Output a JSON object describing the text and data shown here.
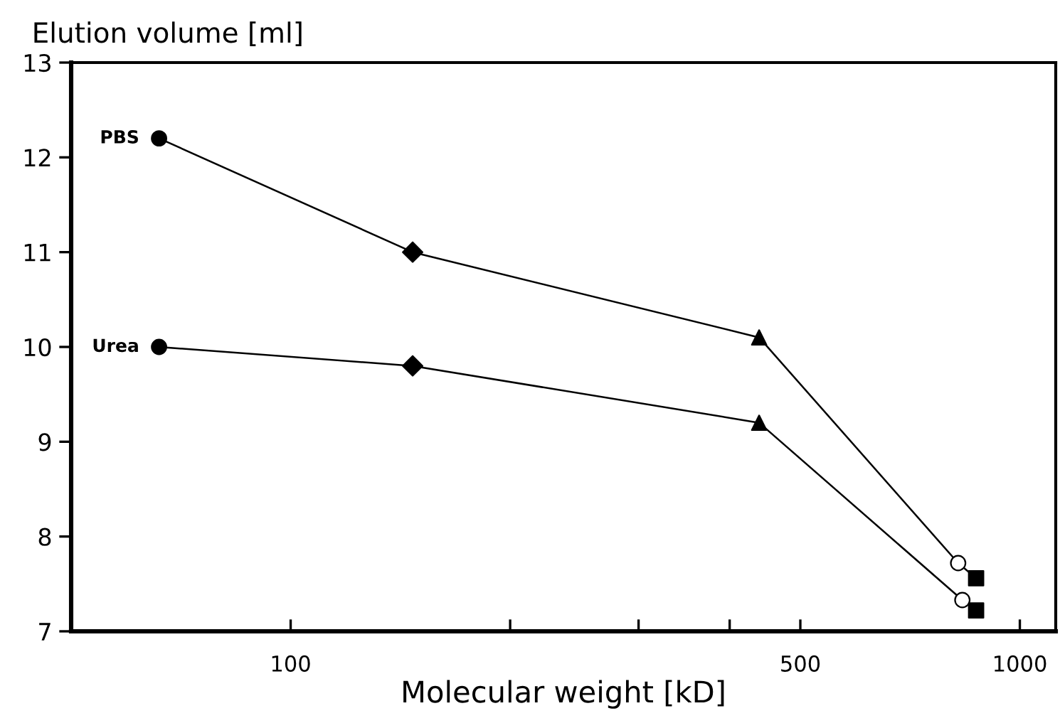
{
  "chart_data": {
    "type": "line",
    "ylabel": "Elution volume [ml]",
    "xlabel": "Molecular weight [kD]",
    "log": "x",
    "xlim": [
      50,
      1120
    ],
    "xticks": [
      100,
      {
        "value": 200,
        "label": null
      },
      {
        "value": 300,
        "label": null
      },
      {
        "value": 400,
        "label": null
      },
      500,
      1000
    ],
    "ylim": [
      7,
      13
    ],
    "yticks": [
      7,
      8,
      9,
      10,
      11,
      12,
      13
    ],
    "grid": false,
    "legend": false,
    "series": [
      {
        "name": "PBS",
        "color": "#000000",
        "marker": "none",
        "x": [
          66,
          147,
          439,
          823,
          871
        ],
        "values": [
          12.2,
          11.0,
          10.1,
          7.72,
          7.56
        ]
      },
      {
        "name": "Urea",
        "color": "#000000",
        "marker": "none",
        "x": [
          66,
          147,
          439,
          834,
          871
        ],
        "values": [
          10.0,
          9.8,
          9.2,
          7.33,
          7.22
        ]
      },
      {
        "type": "scatter",
        "color": "#000000",
        "marker": "circle",
        "x": [
          66,
          66
        ],
        "values": [
          12.2,
          10.0
        ]
      },
      {
        "type": "scatter",
        "color": "#000000",
        "marker": "diamond",
        "x": [
          147,
          147
        ],
        "values": [
          11.0,
          9.8
        ]
      },
      {
        "type": "scatter",
        "color": "#000000",
        "marker": "triangle",
        "x": [
          439,
          439
        ],
        "values": [
          10.1,
          9.2
        ]
      },
      {
        "type": "scatter",
        "color": "#ffffff",
        "marker": "circle",
        "x": [
          823,
          834
        ],
        "values": [
          7.72,
          7.33
        ]
      },
      {
        "type": "scatter",
        "color": "#000000",
        "marker": "square",
        "x": [
          871,
          871
        ],
        "values": [
          7.56,
          7.22
        ]
      }
    ]
  }
}
